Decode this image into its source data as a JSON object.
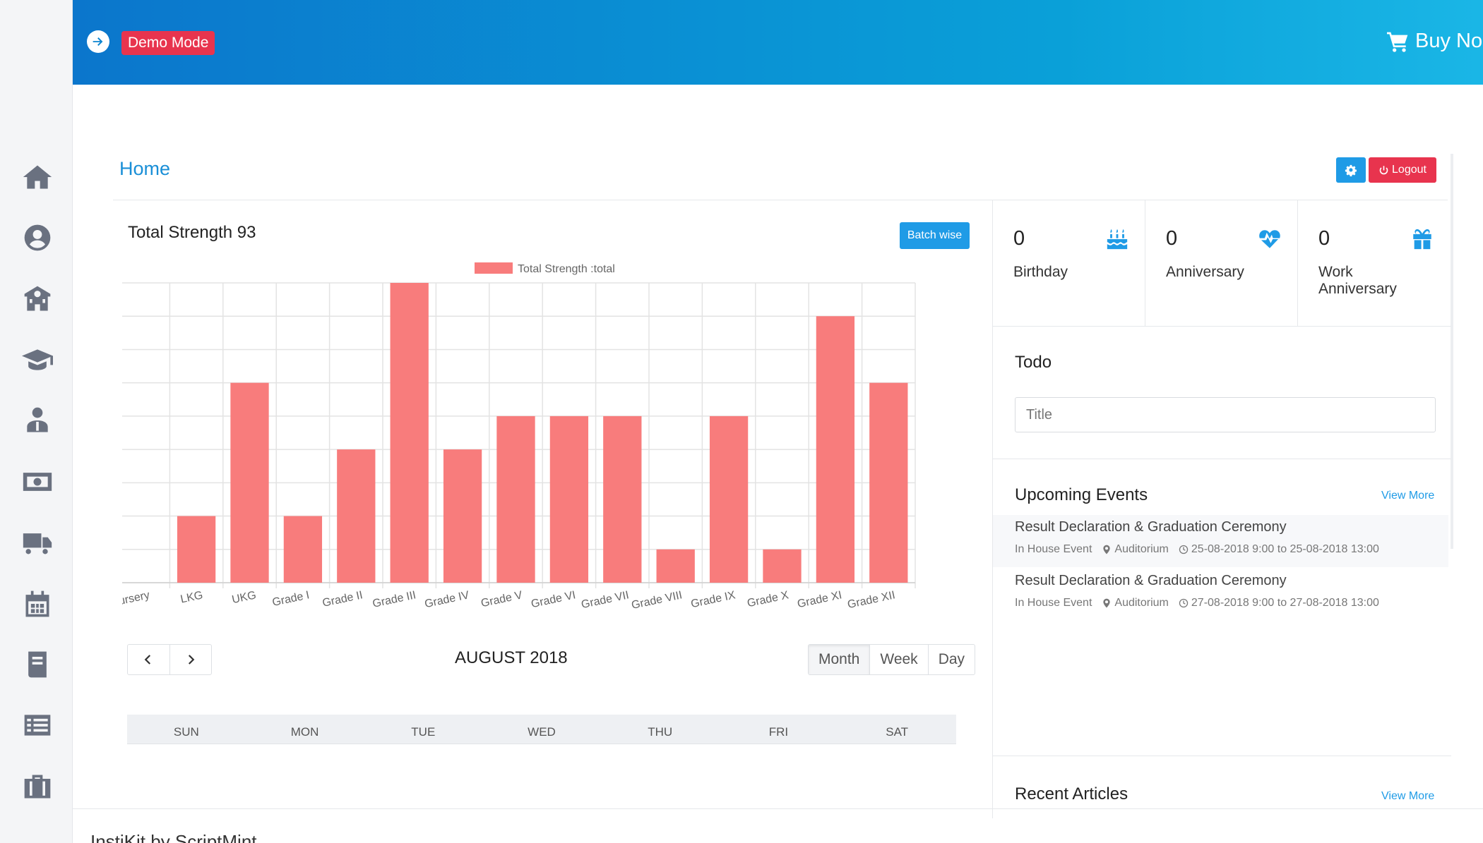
{
  "header": {
    "demo_badge": "Demo Mode",
    "buy_label": "Buy No"
  },
  "sidebar": {
    "icons": [
      "home-icon",
      "user-circle-icon",
      "school-building-icon",
      "graduation-cap-icon",
      "teacher-icon",
      "money-icon",
      "bus-icon",
      "calendar-icon",
      "book-icon",
      "list-icon",
      "briefcase-icon"
    ]
  },
  "page": {
    "title": "Home",
    "logout_label": "Logout"
  },
  "strength": {
    "title": "Total Strength 93",
    "batch_button": "Batch wise"
  },
  "chart_data": {
    "type": "bar",
    "legend": "Total Strength :total",
    "categories": [
      "Nursery",
      "LKG",
      "UKG",
      "Grade I",
      "Grade II",
      "Grade III",
      "Grade IV",
      "Grade V",
      "Grade VI",
      "Grade VII",
      "Grade VIII",
      "Grade IX",
      "Grade X",
      "Grade XI",
      "Grade XII"
    ],
    "values": [
      null,
      4,
      8,
      4,
      6,
      11,
      6,
      7,
      7,
      7,
      3,
      7,
      3,
      10,
      8
    ],
    "ylim": [
      2,
      11
    ],
    "yticks": [
      "2",
      "3",
      "4",
      "5",
      "6",
      "7",
      "8",
      "9",
      "10",
      "11"
    ],
    "grid": true,
    "legend_position": "top",
    "color": "#f87c7c"
  },
  "calendar": {
    "title": "AUGUST 2018",
    "views": [
      "Month",
      "Week",
      "Day"
    ],
    "days": [
      "SUN",
      "MON",
      "TUE",
      "WED",
      "THU",
      "FRI",
      "SAT"
    ]
  },
  "stats": [
    {
      "count": "0",
      "label": "Birthday",
      "icon": "birthday-cake-icon"
    },
    {
      "count": "0",
      "label": "Anniversary",
      "icon": "heartbeat-icon"
    },
    {
      "count": "0",
      "label": "Work Anniversary",
      "icon": "gift-icon"
    }
  ],
  "todo": {
    "title": "Todo",
    "placeholder": "Title"
  },
  "events": {
    "title": "Upcoming Events",
    "view_more": "View More",
    "items": [
      {
        "title": "Result Declaration & Graduation Ceremony",
        "type": "In House Event",
        "venue": "Auditorium",
        "time": "25-08-2018 9:00 to 25-08-2018 13:00"
      },
      {
        "title": "Result Declaration & Graduation Ceremony",
        "type": "In House Event",
        "venue": "Auditorium",
        "time": "27-08-2018 9:00 to 27-08-2018 13:00"
      }
    ]
  },
  "articles": {
    "title": "Recent Articles",
    "view_more": "View More"
  },
  "footer": {
    "text": "InstiKit by ScriptMint"
  }
}
